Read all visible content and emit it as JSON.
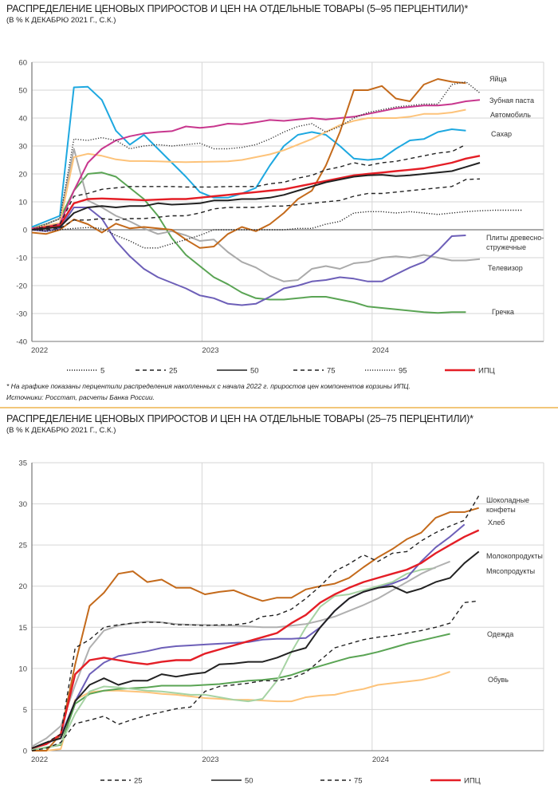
{
  "chart_data": [
    {
      "type": "line",
      "title": "РАСПРЕДЕЛЕНИЕ ЦЕНОВЫХ ПРИРОСТОВ И ЦЕН НА ОТДЕЛЬНЫЕ ТОВАРЫ (5–95 ПЕРЦЕНТИЛИ)*",
      "subtitle": "(В % К ДЕКАБРЮ 2021 Г., С.К.)",
      "xlabel": "",
      "ylabel": "",
      "ylim": [
        -40,
        60
      ],
      "yticks": [
        "60",
        "50",
        "40",
        "30",
        "20",
        "10",
        "0",
        "-10",
        "-20",
        "-30",
        "-40"
      ],
      "ytick_values": [
        60,
        50,
        40,
        30,
        20,
        10,
        0,
        -10,
        -20,
        -30,
        -40
      ],
      "xticks": [
        {
          "label": "2022",
          "month": 0
        },
        {
          "label": "2023",
          "month": 12
        },
        {
          "label": "2024",
          "month": 24
        }
      ],
      "x_unit": "months since December 2021",
      "grid": true,
      "legend_position": "bottom",
      "series": [
        {
          "name": "95",
          "style": "dotted",
          "color": "#333333",
          "legend": true,
          "label": "",
          "values": [
            0,
            2,
            4,
            32.5,
            32,
            33,
            32,
            29,
            30,
            30.5,
            30,
            30.5,
            31,
            29,
            29,
            29.5,
            30.5,
            32.5,
            35,
            37,
            38,
            35,
            37,
            40,
            42,
            43,
            44,
            44.5,
            45,
            45,
            52,
            53,
            49
          ]
        },
        {
          "name": "75",
          "style": "dashed",
          "color": "#222222",
          "legend": true,
          "label": "",
          "values": [
            0,
            1,
            2,
            12,
            13,
            14.5,
            15,
            15.5,
            15.5,
            15.5,
            15.5,
            15.3,
            15.3,
            15.3,
            15.5,
            15.5,
            15.5,
            16.5,
            17,
            18.5,
            19.5,
            21.5,
            22.5,
            24,
            23,
            24,
            24.5,
            25.5,
            26.5,
            27.5,
            28,
            30.5
          ]
        },
        {
          "name": "50",
          "style": "solid",
          "color": "#222222",
          "legend": true,
          "label": "",
          "values": [
            0,
            0.5,
            1,
            6,
            8,
            8.5,
            8,
            8.5,
            8.5,
            9.5,
            9,
            9.2,
            9.5,
            10.5,
            10.5,
            11,
            11,
            11.5,
            12.5,
            14,
            15.5,
            17,
            18,
            19,
            19.5,
            19.7,
            19.2,
            19.5,
            20,
            20.5,
            21,
            22.5,
            24
          ]
        },
        {
          "name": "25",
          "style": "dashed",
          "color": "#222222",
          "legend": true,
          "label": "",
          "values": [
            0,
            0,
            0.5,
            3.5,
            3.5,
            4,
            3.5,
            4,
            4,
            4.5,
            5,
            5,
            6,
            7.5,
            8,
            8,
            8,
            8.5,
            8.5,
            9,
            9.5,
            10,
            10.5,
            12,
            13,
            13,
            13.5,
            14,
            14.5,
            15,
            15.5,
            18,
            18.2
          ]
        },
        {
          "name": "5",
          "style": "dotted",
          "color": "#222222",
          "legend": true,
          "label": "",
          "values": [
            0,
            -0.5,
            0,
            0.5,
            0.8,
            0.5,
            -2,
            -4,
            -6.5,
            -6.5,
            -5,
            -3.5,
            -2,
            0,
            0,
            0,
            0,
            0,
            0,
            0.5,
            0.5,
            2,
            3,
            6,
            6.5,
            6.5,
            6,
            6.5,
            6,
            5.5,
            6,
            6.5,
            6.8,
            7,
            7,
            7
          ]
        },
        {
          "name": "ИПЦ",
          "style": "solid",
          "color": "#e41e26",
          "legend": true,
          "label": "",
          "values": [
            0,
            1,
            1.5,
            9.5,
            11,
            11.2,
            11,
            10.8,
            10.6,
            10.8,
            11,
            11,
            11.5,
            12,
            12.5,
            13,
            13.5,
            14,
            14.5,
            15.5,
            16.5,
            17.5,
            18.5,
            19.5,
            20,
            20.5,
            21,
            21.5,
            22,
            23,
            24,
            25.5,
            26.5
          ]
        },
        {
          "name": "Яйца",
          "style": "solid",
          "color": "#c46a1b",
          "legend": false,
          "label": "Яйца",
          "values": [
            -1,
            -1.5,
            0,
            3.7,
            2,
            -1,
            2.2,
            0.5,
            1,
            0.5,
            0,
            -3.5,
            -6.5,
            -6,
            -1.5,
            1,
            -0.5,
            2,
            6,
            11,
            14,
            23,
            35,
            50,
            50,
            51.5,
            47,
            46,
            52,
            54,
            53,
            52.5
          ]
        },
        {
          "name": "Зубная паста",
          "style": "solid",
          "color": "#c8378e",
          "legend": false,
          "label": "Зубная паста",
          "values": [
            0.5,
            1,
            2,
            14,
            24,
            29,
            32,
            33.5,
            34.5,
            35,
            35.3,
            37,
            36.5,
            37,
            38,
            37.8,
            38.5,
            39.3,
            39,
            39.5,
            40,
            39.5,
            40,
            40.5,
            41.5,
            42.5,
            43.5,
            44,
            44.5,
            44.5,
            45,
            46,
            46.5
          ]
        },
        {
          "name": "Автомобиль",
          "style": "solid",
          "color": "#fdc37a",
          "legend": false,
          "label": "Автомобиль",
          "values": [
            0.5,
            1.5,
            2.5,
            26,
            27.2,
            26.5,
            25.2,
            24.6,
            24.6,
            24.5,
            24.3,
            24.2,
            24.3,
            24.4,
            24.5,
            25,
            26,
            27,
            28.5,
            30.5,
            32.5,
            35,
            37.5,
            39,
            40,
            40,
            40,
            40.5,
            41.5,
            41.5,
            42,
            43
          ]
        },
        {
          "name": "Сахар",
          "style": "solid",
          "color": "#1ea8e0",
          "legend": false,
          "label": "Сахар",
          "values": [
            1,
            3,
            5,
            51,
            51.2,
            46.5,
            35.5,
            30.5,
            34,
            29,
            24,
            19,
            13.5,
            11.5,
            11.5,
            13,
            15,
            23,
            30,
            34,
            35,
            34,
            30,
            25.5,
            25,
            25.5,
            29,
            32,
            32.5,
            35,
            36,
            35.5
          ]
        },
        {
          "name": "Плиты древесно-стружечные",
          "style": "solid",
          "color": "#6d5fb8",
          "legend": false,
          "label": "Плиты древесно-стружечные",
          "values": [
            0,
            -0.5,
            0.5,
            8,
            8,
            4,
            -4,
            -9.5,
            -14,
            -17,
            -19,
            -21,
            -23.5,
            -24.5,
            -26.5,
            -27,
            -26.5,
            -24,
            -21,
            -20,
            -18.5,
            -18,
            -17,
            -17.5,
            -18.5,
            -18.5,
            -16,
            -13.5,
            -11.5,
            -7.5,
            -2.3,
            -2
          ]
        },
        {
          "name": "Телевизор",
          "style": "solid",
          "color": "#aaaaaa",
          "legend": false,
          "label": "Телевизор",
          "values": [
            0,
            2,
            4,
            29,
            10.5,
            8,
            5,
            3,
            0.5,
            -1.5,
            -0.5,
            -2,
            -4,
            -3.5,
            -8,
            -11.5,
            -13.5,
            -16.5,
            -18.5,
            -18,
            -14,
            -13,
            -14,
            -12,
            -11.5,
            -10,
            -9.5,
            -10,
            -9,
            -10,
            -11,
            -11,
            -10.5
          ]
        },
        {
          "name": "Гречка",
          "style": "solid",
          "color": "#5aa454",
          "legend": false,
          "label": "Гречка",
          "values": [
            0.5,
            2,
            4,
            14,
            20,
            20.5,
            19,
            15,
            11,
            5,
            -3,
            -9,
            -13,
            -17,
            -19.5,
            -22.5,
            -24.5,
            -25,
            -25,
            -24.5,
            -24,
            -24,
            -25,
            -26,
            -27.5,
            -28,
            -28.5,
            -29,
            -29.5,
            -29.8,
            -29.5,
            -29.5
          ]
        }
      ]
    },
    {
      "type": "line",
      "title": "РАСПРЕДЕЛЕНИЕ ЦЕНОВЫХ ПРИРОСТОВ И ЦЕН НА ОТДЕЛЬНЫЕ ТОВАРЫ (25–75 ПЕРЦЕНТИЛИ)*",
      "subtitle": "(В % К ДЕКАБРЮ 2021 Г., С.К.)",
      "xlabel": "",
      "ylabel": "",
      "ylim": [
        0,
        35
      ],
      "yticks": [
        "35",
        "30",
        "25",
        "20",
        "15",
        "10",
        "5",
        "0"
      ],
      "ytick_values": [
        35,
        30,
        25,
        20,
        15,
        10,
        5,
        0
      ],
      "xticks": [
        {
          "label": "2022",
          "month": 0
        },
        {
          "label": "2023",
          "month": 12
        },
        {
          "label": "2024",
          "month": 24
        }
      ],
      "x_unit": "months since December 2021",
      "grid": true,
      "legend_position": "bottom",
      "series": [
        {
          "name": "75",
          "style": "dashed",
          "color": "#222222",
          "legend": true,
          "label": "",
          "values": [
            0.3,
            1,
            2,
            12.5,
            13.5,
            15,
            15.3,
            15.5,
            15.6,
            15.6,
            15.3,
            15.3,
            15.2,
            15.3,
            15.3,
            15.5,
            16.3,
            16.5,
            17.2,
            18.5,
            20,
            21.8,
            22.7,
            23.8,
            23,
            24,
            24.2,
            25.5,
            26.5,
            27.3,
            28,
            31
          ]
        },
        {
          "name": "50",
          "style": "solid",
          "color": "#222222",
          "legend": true,
          "label": "",
          "values": [
            0.3,
            1,
            1.5,
            6,
            8,
            8.8,
            8,
            8.5,
            8.5,
            9.3,
            9,
            9.3,
            9.5,
            10.5,
            10.6,
            10.8,
            10.8,
            11.3,
            12,
            12.5,
            15,
            17,
            18.5,
            19.3,
            19.8,
            20,
            19.2,
            19.7,
            20.5,
            21,
            22.8,
            24.2
          ]
        },
        {
          "name": "25",
          "style": "dashed",
          "color": "#222222",
          "legend": true,
          "label": "",
          "values": [
            0,
            0.3,
            1,
            3.3,
            3.7,
            4.2,
            3.2,
            3.8,
            4.3,
            4.7,
            5.1,
            5.3,
            7.2,
            7.8,
            8,
            8.2,
            8.5,
            8.5,
            8.8,
            9.5,
            11,
            12.5,
            13,
            13.5,
            13.8,
            14,
            14.3,
            14.6,
            15,
            15.5,
            18,
            18.2
          ]
        },
        {
          "name": "ИПЦ",
          "style": "solid",
          "color": "#e41e26",
          "legend": true,
          "label": "",
          "values": [
            0.3,
            0.8,
            2,
            9.3,
            11,
            11.3,
            11,
            10.7,
            10.5,
            10.8,
            11,
            11,
            11.8,
            12.3,
            12.8,
            13.3,
            13.8,
            14.3,
            15.5,
            16.5,
            18,
            19,
            19.8,
            20.5,
            21,
            21.5,
            22,
            22.8,
            24,
            25,
            26,
            26.8
          ]
        },
        {
          "name": "Шоколадные конфеты",
          "style": "solid",
          "color": "#c46a1b",
          "legend": false,
          "label": "Шоколадные конфеты",
          "values": [
            0,
            0,
            2,
            10.5,
            17.6,
            19.2,
            21.5,
            21.8,
            20.5,
            20.8,
            19.8,
            19.8,
            19,
            19.3,
            19.5,
            18.8,
            18.2,
            18.6,
            18.6,
            19.6,
            20,
            20.3,
            21,
            22.3,
            23.5,
            24.5,
            25.7,
            26.5,
            28.3,
            29,
            29,
            29.5
          ]
        },
        {
          "name": "Хлеб",
          "style": "solid",
          "color": "#6d5fb8",
          "legend": false,
          "label": "Хлеб",
          "values": [
            0.3,
            0.8,
            1.8,
            6,
            9.3,
            10.7,
            11.5,
            11.8,
            12.1,
            12.5,
            12.7,
            12.8,
            12.9,
            13,
            13.1,
            13.2,
            13.5,
            13.6,
            13.6,
            13.7,
            15,
            17,
            18.5,
            19.3,
            19.8,
            20.3,
            21,
            23,
            24.7,
            26,
            27.5
          ]
        },
        {
          "name": "Молокопродукты",
          "style": "solid",
          "color": "#b0b0b0",
          "legend": false,
          "label": "Молокопродукты",
          "values": [
            0.5,
            1.5,
            3,
            8,
            12.5,
            14.6,
            15.2,
            15.5,
            15.7,
            15.6,
            15.4,
            15.3,
            15.3,
            15.2,
            15.2,
            15.1,
            15,
            15,
            15.2,
            15.4,
            15.8,
            16.3,
            17,
            17.7,
            18.5,
            19.5,
            20.5,
            21.5,
            22.3,
            23
          ]
        },
        {
          "name": "Мясопродукты",
          "style": "solid",
          "color": "#a6d3a3",
          "legend": false,
          "label": "Мясопродукты",
          "values": [
            0.2,
            0.3,
            0.8,
            4.5,
            7.2,
            7.8,
            7.7,
            7.5,
            7.3,
            7.2,
            7.0,
            6.8,
            6.8,
            6.5,
            6.2,
            6,
            6.3,
            8.5,
            12,
            15,
            17.5,
            18.8,
            19,
            19.5,
            20,
            20.5,
            21.5,
            22,
            22.2
          ]
        },
        {
          "name": "Одежда",
          "style": "solid",
          "color": "#5aa454",
          "legend": false,
          "label": "Одежда",
          "values": [
            0.1,
            0.4,
            0.7,
            5.7,
            6.9,
            7.3,
            7.5,
            7.6,
            7.7,
            7.9,
            7.9,
            7.9,
            8,
            8.1,
            8.3,
            8.5,
            8.6,
            8.8,
            9.2,
            9.8,
            10.3,
            10.8,
            11.3,
            11.6,
            12,
            12.5,
            13,
            13.4,
            13.8,
            14.2
          ]
        },
        {
          "name": "Обувь",
          "style": "solid",
          "color": "#fdc37a",
          "legend": false,
          "label": "Обувь",
          "values": [
            0,
            0,
            0.2,
            6.2,
            7.1,
            7.3,
            7.3,
            7.2,
            7.1,
            6.9,
            6.8,
            6.6,
            6.4,
            6.3,
            6.2,
            6.2,
            6.1,
            6,
            6,
            6.5,
            6.7,
            6.8,
            7.2,
            7.5,
            8,
            8.2,
            8.4,
            8.6,
            9,
            9.6
          ]
        }
      ]
    }
  ],
  "notes": {
    "footnote": "* На графике показаны перцентили распределения накопленных с начала 2022 г. приростов цен компонентов корзины ИПЦ.",
    "sources": "Источники: Росстат, расчеты Банка России."
  },
  "legend1": [
    "5",
    "25",
    "50",
    "75",
    "95",
    "ИПЦ"
  ],
  "legend2": [
    "25",
    "50",
    "75",
    "ИПЦ"
  ]
}
